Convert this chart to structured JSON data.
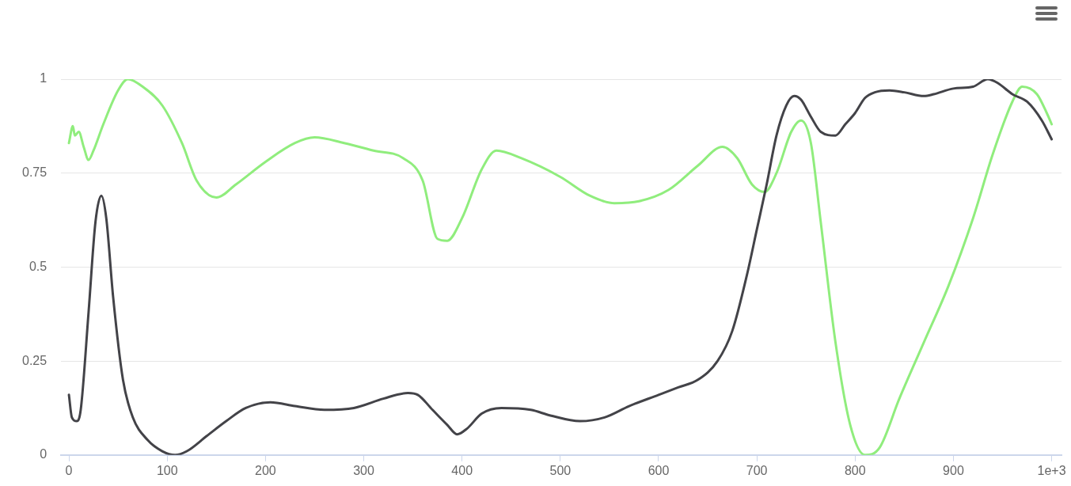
{
  "chart_data": {
    "type": "line",
    "xlim": [
      -8,
      1010
    ],
    "ylim": [
      0,
      1
    ],
    "xticks": [
      0,
      100,
      200,
      300,
      400,
      500,
      600,
      700,
      800,
      900,
      {
        "value": 1000,
        "label": "1e+3"
      }
    ],
    "yticks": [
      0,
      0.25,
      0.5,
      0.75,
      1
    ],
    "grid": "y",
    "legend": false,
    "marker": "none",
    "line_style": "solid",
    "series": [
      {
        "color": "#434348",
        "x": [
          0,
          3,
          8,
          12,
          20,
          27,
          33,
          38,
          45,
          55,
          65,
          80,
          95,
          108,
          120,
          140,
          160,
          180,
          205,
          230,
          260,
          290,
          320,
          345,
          355,
          370,
          385,
          395,
          405,
          420,
          440,
          470,
          490,
          520,
          545,
          570,
          600,
          620,
          640,
          660,
          675,
          690,
          700,
          710,
          720,
          730,
          738,
          745,
          755,
          765,
          780,
          790,
          800,
          810,
          820,
          835,
          850,
          870,
          880,
          900,
          920,
          935,
          945,
          960,
          975,
          990,
          1000
        ],
        "values": [
          0.16,
          0.1,
          0.09,
          0.12,
          0.38,
          0.62,
          0.69,
          0.63,
          0.42,
          0.2,
          0.1,
          0.04,
          0.01,
          0,
          0.01,
          0.05,
          0.09,
          0.125,
          0.14,
          0.13,
          0.12,
          0.125,
          0.15,
          0.165,
          0.16,
          0.12,
          0.08,
          0.055,
          0.07,
          0.11,
          0.125,
          0.12,
          0.105,
          0.09,
          0.1,
          0.13,
          0.16,
          0.18,
          0.2,
          0.25,
          0.33,
          0.48,
          0.6,
          0.72,
          0.85,
          0.93,
          0.955,
          0.945,
          0.9,
          0.86,
          0.85,
          0.88,
          0.91,
          0.95,
          0.965,
          0.97,
          0.965,
          0.955,
          0.96,
          0.975,
          0.98,
          1,
          0.99,
          0.96,
          0.94,
          0.89,
          0.84
        ]
      },
      {
        "color": "#90ed7d",
        "x": [
          0,
          4,
          6,
          10,
          15,
          20,
          25,
          35,
          50,
          60,
          75,
          95,
          115,
          130,
          150,
          170,
          200,
          230,
          250,
          280,
          310,
          340,
          360,
          375,
          385,
          400,
          420,
          435,
          460,
          500,
          530,
          555,
          580,
          610,
          640,
          665,
          680,
          695,
          708,
          720,
          735,
          745,
          755,
          765,
          780,
          795,
          810,
          825,
          845,
          870,
          895,
          920,
          940,
          960,
          970,
          985,
          995,
          1000
        ],
        "values": [
          0.83,
          0.875,
          0.85,
          0.86,
          0.82,
          0.785,
          0.81,
          0.88,
          0.97,
          1,
          0.98,
          0.93,
          0.83,
          0.73,
          0.685,
          0.72,
          0.78,
          0.83,
          0.845,
          0.83,
          0.81,
          0.79,
          0.73,
          0.575,
          0.57,
          0.63,
          0.76,
          0.81,
          0.79,
          0.74,
          0.69,
          0.67,
          0.675,
          0.705,
          0.77,
          0.82,
          0.79,
          0.72,
          0.7,
          0.75,
          0.86,
          0.89,
          0.83,
          0.62,
          0.3,
          0.08,
          0,
          0.02,
          0.15,
          0.3,
          0.45,
          0.63,
          0.8,
          0.94,
          0.98,
          0.96,
          0.91,
          0.88
        ]
      }
    ]
  }
}
